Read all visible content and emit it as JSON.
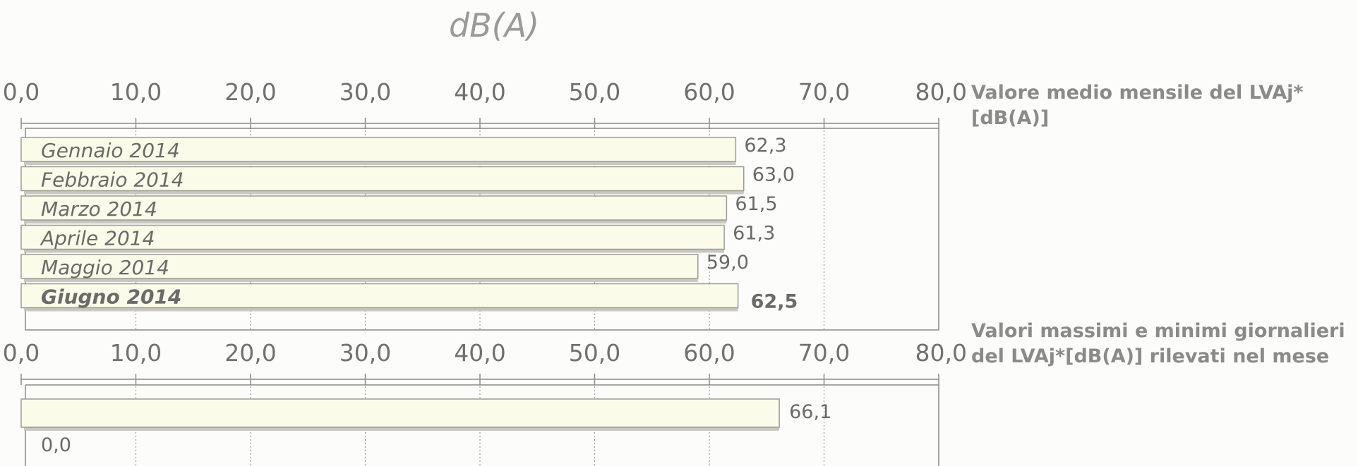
{
  "chart_data": [
    {
      "type": "bar",
      "orientation": "horizontal",
      "title": "dB(A)",
      "legend_label": [
        "Valore medio mensile del LVAj*",
        "[dB(A)]"
      ],
      "xlim": [
        0,
        80
      ],
      "x_ticks": [
        "0,0",
        "10,0",
        "20,0",
        "30,0",
        "40,0",
        "50,0",
        "60,0",
        "70,0",
        "80,0"
      ],
      "grid": true,
      "categories": [
        "Gennaio 2014",
        "Febbraio 2014",
        "Marzo 2014",
        "Aprile 2014",
        "Maggio 2014",
        "Giugno 2014"
      ],
      "values": [
        62.3,
        63.0,
        61.5,
        61.3,
        59.0,
        62.5
      ],
      "value_labels": [
        "62,3",
        "63,0",
        "61,5",
        "61,3",
        "59,0",
        "62,5"
      ],
      "highlight_index": 5,
      "bar_color": "#fbfbe9"
    },
    {
      "type": "bar",
      "orientation": "horizontal",
      "legend_label": [
        "Valori massimi e minimi giornalieri",
        "del LVAj*[dB(A)] rilevati nel mese"
      ],
      "xlim": [
        0,
        80
      ],
      "x_ticks": [
        "0,0",
        "10,0",
        "20,0",
        "30,0",
        "40,0",
        "50,0",
        "60,0",
        "70,0",
        "80,0"
      ],
      "grid": true,
      "values": [
        66.1,
        0.0
      ],
      "value_labels": [
        "66,1",
        "0,0"
      ],
      "bar_color": "#fbfbe9"
    }
  ]
}
